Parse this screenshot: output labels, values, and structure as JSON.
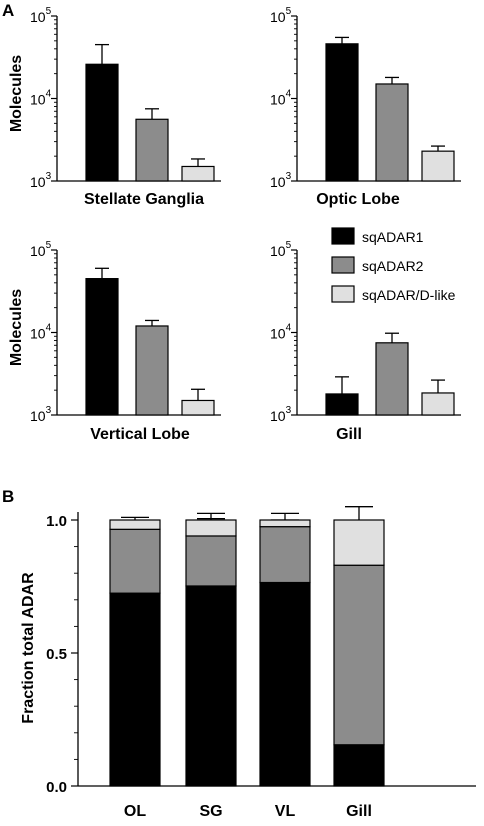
{
  "colors": {
    "sqADAR1": "#000000",
    "sqADAR2": "#8c8c8c",
    "sqADAR/D-like": "#e0e0e0",
    "axis": "#000000",
    "background": "#ffffff"
  },
  "panel_A": {
    "label": "A",
    "ylabel": "Molecules",
    "legend": [
      "sqADAR1",
      "sqADAR2",
      "sqADAR/D-like"
    ]
  },
  "panel_B": {
    "label": "B",
    "ylabel": "Fraction total ADAR"
  },
  "chart_data": [
    {
      "type": "bar",
      "title": "Stellate Ganglia",
      "scale": "log",
      "ylim": [
        1000,
        100000
      ],
      "ytick_labels": [
        [
          "10",
          "3"
        ],
        [
          "10",
          "4"
        ],
        [
          "10",
          "5"
        ]
      ],
      "ylabel": "Molecules",
      "categories": [
        "sqADAR1",
        "sqADAR2",
        "sqADAR/D-like"
      ],
      "values": [
        26000,
        5600,
        1500
      ],
      "errors_upper": [
        45000,
        7500,
        1850
      ]
    },
    {
      "type": "bar",
      "title": "Optic Lobe",
      "scale": "log",
      "ylim": [
        1000,
        100000
      ],
      "ytick_labels": [
        [
          "10",
          "3"
        ],
        [
          "10",
          "4"
        ],
        [
          "10",
          "5"
        ]
      ],
      "ylabel": "",
      "categories": [
        "sqADAR1",
        "sqADAR2",
        "sqADAR/D-like"
      ],
      "values": [
        46000,
        15000,
        2300
      ],
      "errors_upper": [
        55000,
        18000,
        2650
      ]
    },
    {
      "type": "bar",
      "title": "Vertical Lobe",
      "scale": "log",
      "ylim": [
        1000,
        100000
      ],
      "ytick_labels": [
        [
          "10",
          "3"
        ],
        [
          "10",
          "4"
        ],
        [
          "10",
          "5"
        ]
      ],
      "ylabel": "Molecules",
      "categories": [
        "sqADAR1",
        "sqADAR2",
        "sqADAR/D-like"
      ],
      "values": [
        45000,
        12000,
        1500
      ],
      "errors_upper": [
        60000,
        14000,
        2050
      ]
    },
    {
      "type": "bar",
      "title": "Gill",
      "scale": "log",
      "ylim": [
        1000,
        100000
      ],
      "ytick_labels": [
        [
          "10",
          "3"
        ],
        [
          "10",
          "4"
        ],
        [
          "10",
          "5"
        ]
      ],
      "ylabel": "",
      "categories": [
        "sqADAR1",
        "sqADAR2",
        "sqADAR/D-like"
      ],
      "values": [
        1800,
        7500,
        1850
      ],
      "errors_upper": [
        2900,
        9800,
        2650
      ]
    },
    {
      "type": "bar",
      "stacked": true,
      "title": "",
      "ylabel": "Fraction total ADAR",
      "ylim": [
        0,
        1.0
      ],
      "ytick_labels": [
        "0.0",
        "0.5",
        "1.0"
      ],
      "categories": [
        "OL",
        "SG",
        "VL",
        "Gill"
      ],
      "series": [
        {
          "name": "sqADAR1",
          "values": [
            0.725,
            0.752,
            0.765,
            0.155
          ],
          "errors_upper": [
            0.78,
            0.82,
            0.82,
            0.215
          ]
        },
        {
          "name": "sqADAR2",
          "values": [
            0.24,
            0.188,
            0.21,
            0.675
          ],
          "errors_upper": [
            0.995,
            1.005,
            1.0,
            0.91
          ]
        },
        {
          "name": "sqADAR/D-like",
          "values": [
            0.035,
            0.06,
            0.025,
            0.17
          ],
          "errors_upper": [
            1.01,
            1.025,
            1.025,
            1.05
          ]
        }
      ]
    }
  ]
}
